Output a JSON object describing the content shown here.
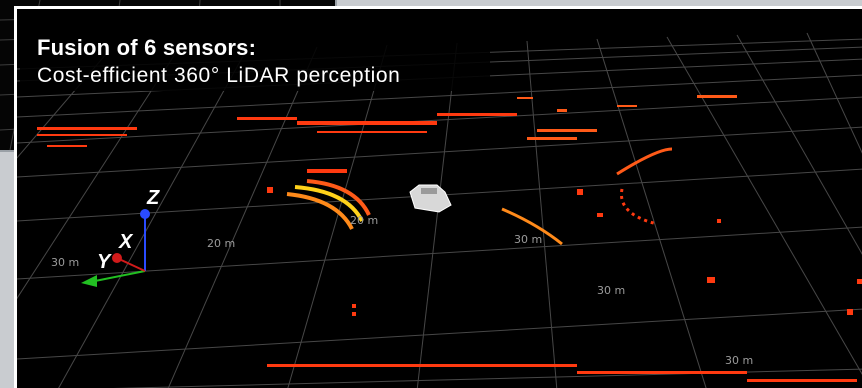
{
  "caption": {
    "title": "Fusion of 6 sensors:",
    "subtitle": "Cost-efficient 360° LiDAR perception"
  },
  "grid_labels": {
    "l1": "30 m",
    "l2": "20 m",
    "l3": "20 m",
    "l4": "30 m",
    "l5": "30 m",
    "l6": "30 m"
  },
  "axes": {
    "x": "X",
    "y": "Y",
    "z": "Z",
    "x_color": "#d11a1a",
    "y_color": "#22c022",
    "z_color": "#2a4bff"
  },
  "colors": {
    "grid": "#4a4a4a",
    "points_primary": "#ff3a10",
    "points_secondary": "#ff8a1a",
    "points_highlight": "#ffd21a"
  },
  "icons": {
    "vehicle": "ego-car-icon"
  }
}
